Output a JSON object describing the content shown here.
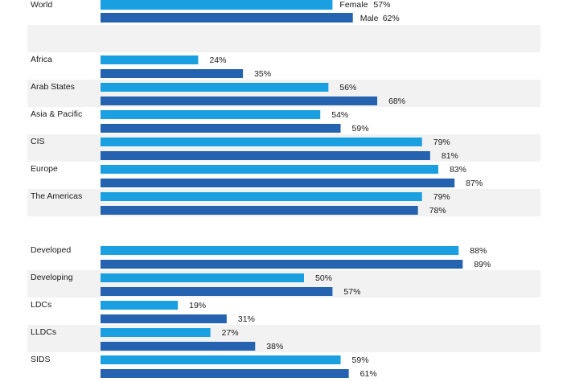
{
  "chart_data": {
    "type": "bar",
    "orientation": "horizontal",
    "value_format": "percent",
    "xlim": [
      0,
      100
    ],
    "colors": {
      "female": "#1aa0e0",
      "male": "#2563b0",
      "band": "#f2f2f2"
    },
    "world": {
      "category": "World",
      "female": {
        "label": "Female",
        "value": 57
      },
      "male": {
        "label": "Male",
        "value": 62
      }
    },
    "groups": [
      {
        "rows": [
          {
            "category": "Africa",
            "female": 24,
            "male": 35
          },
          {
            "category": "Arab States",
            "female": 56,
            "male": 68
          },
          {
            "category": "Asia & Pacific",
            "female": 54,
            "male": 59
          },
          {
            "category": "CIS",
            "female": 79,
            "male": 81
          },
          {
            "category": "Europe",
            "female": 83,
            "male": 87
          },
          {
            "category": "The Americas",
            "female": 79,
            "male": 78
          }
        ]
      },
      {
        "rows": [
          {
            "category": "Developed",
            "female": 88,
            "male": 89
          },
          {
            "category": "Developing",
            "female": 50,
            "male": 57
          },
          {
            "category": "LDCs",
            "female": 19,
            "male": 31
          },
          {
            "category": "LLDCs",
            "female": 27,
            "male": 38
          },
          {
            "category": "SIDS",
            "female": 59,
            "male": 61
          }
        ]
      }
    ]
  }
}
